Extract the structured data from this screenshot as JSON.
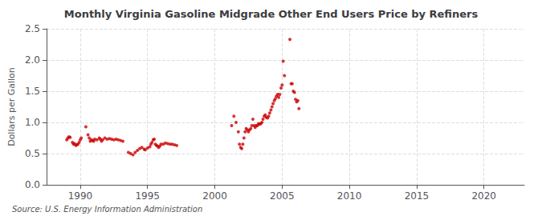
{
  "chart_data": {
    "type": "scatter",
    "title": "Monthly Virginia Gasoline Midgrade Other End Users Price by Refiners",
    "ylabel": "Dollars per Gallon",
    "annotations": [
      "Source: U.S. Energy Information Administration"
    ],
    "color": "#cc0000",
    "marker": "circle",
    "grid": true,
    "xlim": [
      1987.5,
      2023
    ],
    "ylim": [
      0.0,
      2.5
    ],
    "xticks": [
      1990,
      1995,
      2000,
      2005,
      2010,
      2015,
      2020
    ],
    "yticks": [
      {
        "value": 0.0,
        "label": "0.0"
      },
      0.5,
      {
        "value": 1.0,
        "label": "1.0"
      },
      1.5,
      {
        "value": 2.0,
        "label": "2.0"
      },
      2.5
    ],
    "x": [
      1989.0,
      1989.08,
      1989.17,
      1989.25,
      1989.42,
      1989.5,
      1989.58,
      1989.67,
      1989.75,
      1989.83,
      1989.92,
      1990.0,
      1990.08,
      1990.42,
      1990.58,
      1990.67,
      1990.75,
      1990.83,
      1990.92,
      1991.0,
      1991.08,
      1991.25,
      1991.42,
      1991.5,
      1991.58,
      1991.67,
      1991.83,
      1992.0,
      1992.17,
      1992.33,
      1992.5,
      1992.67,
      1992.83,
      1993.0,
      1993.17,
      1993.58,
      1993.75,
      1993.92,
      1994.08,
      1994.25,
      1994.42,
      1994.58,
      1994.75,
      1994.83,
      1995.0,
      1995.17,
      1995.25,
      1995.33,
      1995.42,
      1995.5,
      1995.58,
      1995.67,
      1995.75,
      1995.83,
      1995.92,
      1996.0,
      1996.17,
      1996.33,
      1996.5,
      1996.67,
      1996.83,
      1997.0,
      1997.17,
      2001.25,
      2001.42,
      2001.58,
      2001.75,
      2001.83,
      2001.92,
      2002.0,
      2002.08,
      2002.17,
      2002.25,
      2002.33,
      2002.42,
      2002.5,
      2002.58,
      2002.67,
      2002.75,
      2002.83,
      2002.92,
      2003.0,
      2003.08,
      2003.17,
      2003.25,
      2003.33,
      2003.42,
      2003.5,
      2003.58,
      2003.67,
      2003.75,
      2003.83,
      2003.92,
      2004.0,
      2004.08,
      2004.17,
      2004.25,
      2004.33,
      2004.42,
      2004.5,
      2004.58,
      2004.67,
      2004.75,
      2004.83,
      2004.92,
      2005.0,
      2005.08,
      2005.17,
      2005.58,
      2005.67,
      2005.75,
      2005.83,
      2005.92,
      2006.0,
      2006.08,
      2006.17,
      2006.25
    ],
    "values": [
      0.72,
      0.75,
      0.77,
      0.76,
      0.68,
      0.65,
      0.66,
      0.63,
      0.64,
      0.65,
      0.68,
      0.72,
      0.75,
      0.93,
      0.8,
      0.75,
      0.7,
      0.72,
      0.71,
      0.7,
      0.73,
      0.72,
      0.75,
      0.73,
      0.7,
      0.72,
      0.75,
      0.73,
      0.74,
      0.73,
      0.72,
      0.73,
      0.72,
      0.71,
      0.7,
      0.52,
      0.5,
      0.48,
      0.52,
      0.55,
      0.58,
      0.6,
      0.57,
      0.56,
      0.59,
      0.61,
      0.65,
      0.68,
      0.72,
      0.73,
      0.65,
      0.63,
      0.62,
      0.6,
      0.62,
      0.65,
      0.65,
      0.67,
      0.66,
      0.65,
      0.65,
      0.64,
      0.63,
      0.95,
      1.1,
      1.0,
      0.85,
      0.65,
      0.6,
      0.58,
      0.65,
      0.75,
      0.85,
      0.9,
      0.88,
      0.85,
      0.88,
      0.9,
      0.95,
      1.05,
      0.95,
      0.92,
      0.95,
      0.95,
      0.98,
      0.97,
      0.98,
      1.0,
      1.05,
      1.1,
      1.12,
      1.08,
      1.07,
      1.1,
      1.15,
      1.2,
      1.25,
      1.3,
      1.35,
      1.38,
      1.42,
      1.45,
      1.4,
      1.45,
      1.55,
      1.6,
      1.98,
      1.75,
      2.33,
      1.62,
      1.62,
      1.5,
      1.48,
      1.37,
      1.33,
      1.35,
      1.22
    ]
  }
}
